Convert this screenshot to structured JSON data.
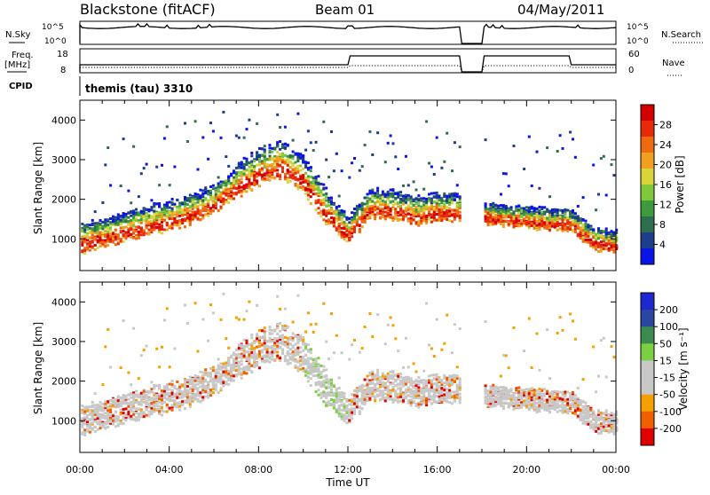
{
  "header": {
    "radar": "Blackstone (fitACF)",
    "beam": "Beam 01",
    "date": "04/May/2011"
  },
  "params": {
    "nsky_label": "N.Sky",
    "nsearch_label": "N.Search",
    "freq_label": "Freq.",
    "freq_unit": "[MHz]",
    "nave_label": "Nave",
    "cpid_label": "CPID",
    "cpid_value": "themis (tau) 3310",
    "noise_ticks_left": [
      "10^5",
      "10^0"
    ],
    "noise_ticks_right": [
      "10^5",
      "10^0"
    ],
    "freq_ticks": [
      "18",
      "8"
    ],
    "nave_ticks": [
      "60",
      "0"
    ]
  },
  "colors": {
    "power": [
      "#0a14e6",
      "#1e3c8c",
      "#2e6e4e",
      "#3d9a3d",
      "#7fc83c",
      "#d8d43a",
      "#f0a020",
      "#f06a12",
      "#e82a0a",
      "#d20000"
    ],
    "velocity": [
      "#e00000",
      "#f06000",
      "#f5a000",
      "#c8c8c8",
      "#c8c8c8",
      "#7ad040",
      "#3c8c50",
      "#2a46a0",
      "#1e28d0"
    ]
  },
  "chart_data": [
    {
      "type": "heatmap",
      "title": "Power",
      "ylabel": "Slant Range [km]",
      "xlabel": "Time UT",
      "ylim": [
        200,
        4500
      ],
      "yticks": [
        "4000",
        "3000",
        "2000",
        "1000"
      ],
      "xticks": [
        "00:00",
        "04:00",
        "08:00",
        "12:00",
        "16:00",
        "20:00",
        "00:00"
      ],
      "colorbar_label": "Power [dB]",
      "colorbar_ticks": [
        "28",
        "24",
        "20",
        "16",
        "12",
        "8",
        "4"
      ],
      "data_gaps_ut_hours": [
        [
          17.0,
          18.0
        ]
      ],
      "main_band": {
        "x_hours": [
          0,
          1,
          2,
          3,
          4,
          5,
          6,
          7,
          8,
          9,
          10,
          11,
          12,
          13,
          14,
          15,
          16,
          17
        ],
        "range_km": [
          1000,
          1150,
          1300,
          1450,
          1600,
          1750,
          2000,
          2450,
          2800,
          3000,
          2600,
          1800,
          1200,
          1900,
          1850,
          1700,
          1800,
          1750
        ]
      },
      "late_band": {
        "x_hours": [
          18,
          19,
          20,
          21,
          22,
          23,
          24
        ],
        "range_km": [
          1650,
          1600,
          1550,
          1500,
          1450,
          1000,
          950
        ]
      }
    },
    {
      "type": "heatmap",
      "title": "Velocity",
      "ylabel": "Slant Range [km]",
      "xlabel": "Time UT",
      "ylim": [
        200,
        4500
      ],
      "yticks": [
        "4000",
        "3000",
        "2000",
        "1000"
      ],
      "xticks": [
        "00:00",
        "04:00",
        "08:00",
        "12:00",
        "16:00",
        "20:00",
        "00:00"
      ],
      "colorbar_label": "Velocity [m s⁻¹]",
      "colorbar_ticks": [
        "200",
        "100",
        "50",
        "15",
        "-15",
        "-50",
        "-100",
        "-200"
      ]
    }
  ]
}
